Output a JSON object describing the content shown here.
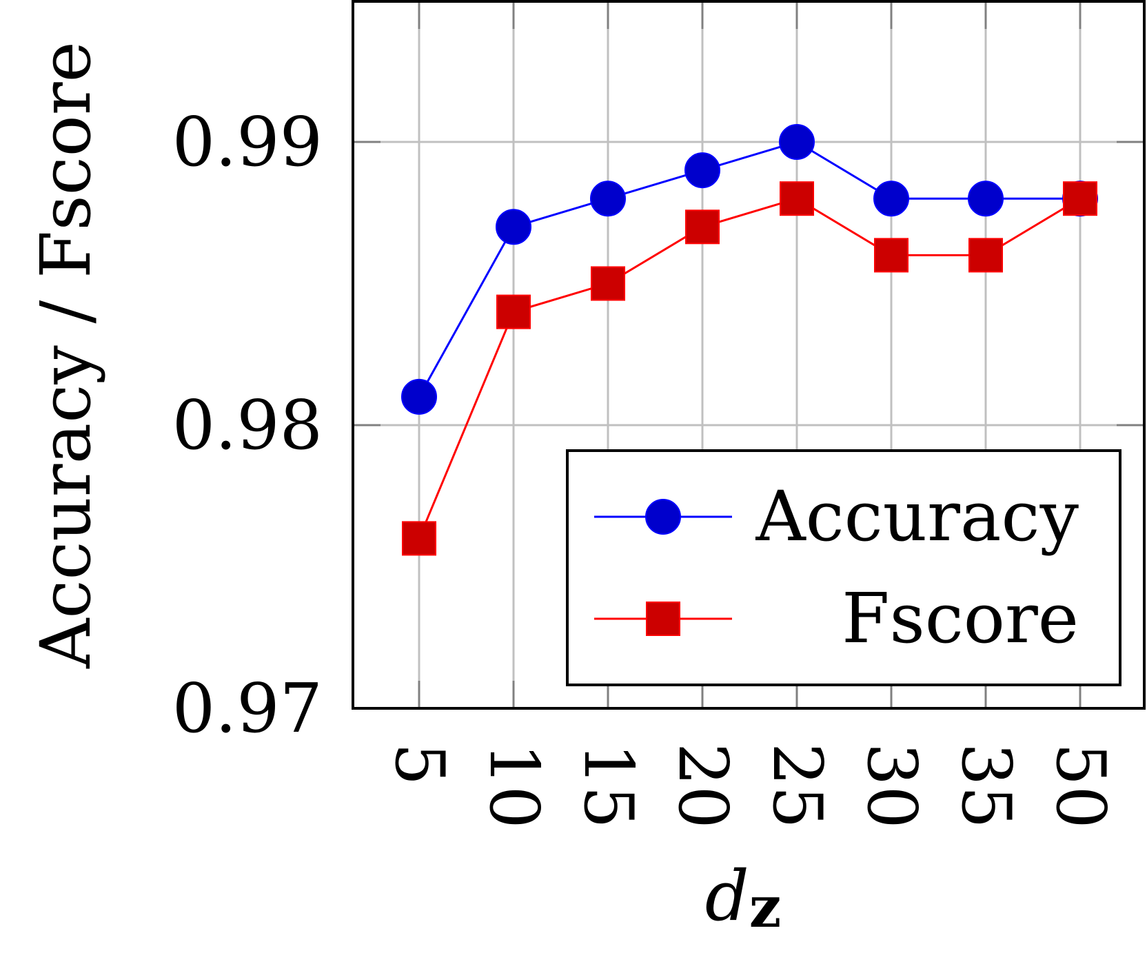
{
  "chart_data": {
    "type": "line",
    "x": [
      "5",
      "10",
      "15",
      "20",
      "25",
      "30",
      "35",
      "50"
    ],
    "series": [
      {
        "name": "Accuracy",
        "color": "#0000cc",
        "marker": "circle",
        "values": [
          0.981,
          0.987,
          0.988,
          0.989,
          0.99,
          0.988,
          0.988,
          0.988
        ]
      },
      {
        "name": "Fscore",
        "color": "#ff0000",
        "marker_fill": "#cc0000",
        "marker": "square",
        "values": [
          0.976,
          0.984,
          0.985,
          0.987,
          0.988,
          0.986,
          0.986,
          0.988
        ]
      }
    ],
    "xlabel_main": "d",
    "xlabel_sub": "z",
    "ylabel": "Accuracy / Fscore",
    "ylim": [
      0.97,
      0.995
    ],
    "yticks": [
      "0.97",
      "0.98",
      "0.99"
    ],
    "ytick_values": [
      0.97,
      0.98,
      0.99
    ],
    "grid": true,
    "legend_position": "bottom-right",
    "x_tick_rotation": "vertical"
  }
}
